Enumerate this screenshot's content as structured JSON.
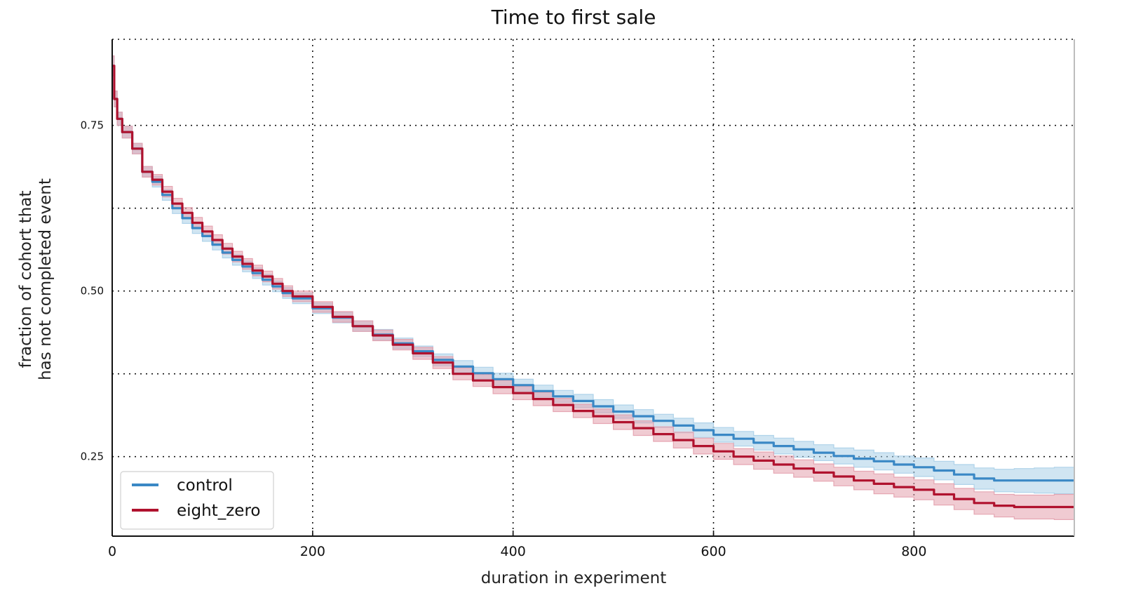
{
  "chart_data": {
    "type": "line",
    "title": "Time to first sale",
    "xlabel": "duration in experiment",
    "ylabel_lines": [
      "fraction of cohort that",
      "has not completed event"
    ],
    "xlim": [
      0,
      960
    ],
    "ylim": [
      0.13,
      0.88
    ],
    "x_ticks": [
      0,
      200,
      400,
      600,
      800
    ],
    "x_tick_labels": [
      "0",
      "200",
      "400",
      "600",
      "800"
    ],
    "y_gridlines": [
      0.25,
      0.375,
      0.5,
      0.625,
      0.75
    ],
    "y_tick_values": [
      0.25,
      0.5,
      0.75
    ],
    "y_tick_labels": [
      "0.25",
      "0.50",
      "0.75"
    ],
    "x_gridlines": [
      200,
      400,
      600,
      800
    ],
    "grid": true,
    "legend_position": "lower-left",
    "series": [
      {
        "name": "control",
        "color": "#3a88c5",
        "band_color": "#a9cfe8",
        "x": [
          0,
          2,
          5,
          10,
          20,
          30,
          40,
          50,
          60,
          70,
          80,
          90,
          100,
          110,
          120,
          130,
          140,
          150,
          160,
          170,
          180,
          200,
          220,
          240,
          260,
          280,
          300,
          320,
          340,
          360,
          380,
          400,
          420,
          440,
          460,
          480,
          500,
          520,
          540,
          560,
          580,
          600,
          620,
          640,
          660,
          680,
          700,
          720,
          740,
          760,
          780,
          800,
          820,
          840,
          860,
          880,
          900,
          920,
          940,
          960
        ],
        "y": [
          0.84,
          0.79,
          0.76,
          0.74,
          0.715,
          0.68,
          0.665,
          0.645,
          0.625,
          0.61,
          0.595,
          0.583,
          0.57,
          0.558,
          0.547,
          0.537,
          0.527,
          0.517,
          0.507,
          0.497,
          0.489,
          0.474,
          0.46,
          0.447,
          0.434,
          0.421,
          0.409,
          0.396,
          0.386,
          0.376,
          0.367,
          0.358,
          0.349,
          0.341,
          0.334,
          0.326,
          0.318,
          0.311,
          0.304,
          0.297,
          0.29,
          0.283,
          0.277,
          0.271,
          0.266,
          0.261,
          0.256,
          0.251,
          0.247,
          0.243,
          0.238,
          0.234,
          0.229,
          0.223,
          0.217,
          0.214,
          0.214,
          0.214,
          0.214,
          0.214
        ],
        "band_halfwidth": [
          0.015,
          0.012,
          0.01,
          0.009,
          0.008,
          0.008,
          0.008,
          0.008,
          0.008,
          0.008,
          0.008,
          0.008,
          0.008,
          0.008,
          0.008,
          0.008,
          0.008,
          0.008,
          0.008,
          0.008,
          0.008,
          0.008,
          0.008,
          0.008,
          0.008,
          0.008,
          0.008,
          0.009,
          0.009,
          0.009,
          0.009,
          0.009,
          0.009,
          0.009,
          0.01,
          0.01,
          0.01,
          0.01,
          0.01,
          0.011,
          0.011,
          0.011,
          0.011,
          0.011,
          0.012,
          0.012,
          0.012,
          0.012,
          0.013,
          0.013,
          0.013,
          0.014,
          0.014,
          0.015,
          0.016,
          0.017,
          0.018,
          0.019,
          0.02,
          0.02
        ]
      },
      {
        "name": "eight_zero",
        "color": "#b0122e",
        "band_color": "#e3a0ad",
        "x": [
          0,
          2,
          5,
          10,
          20,
          30,
          40,
          50,
          60,
          70,
          80,
          90,
          100,
          110,
          120,
          130,
          140,
          150,
          160,
          170,
          180,
          200,
          220,
          240,
          260,
          280,
          300,
          320,
          340,
          360,
          380,
          400,
          420,
          440,
          460,
          480,
          500,
          520,
          540,
          560,
          580,
          600,
          620,
          640,
          660,
          680,
          700,
          720,
          740,
          760,
          780,
          800,
          820,
          840,
          860,
          880,
          900,
          920,
          940,
          960
        ],
        "y": [
          0.84,
          0.79,
          0.76,
          0.74,
          0.715,
          0.68,
          0.668,
          0.65,
          0.632,
          0.618,
          0.603,
          0.59,
          0.577,
          0.564,
          0.552,
          0.541,
          0.531,
          0.522,
          0.511,
          0.5,
          0.492,
          0.476,
          0.461,
          0.447,
          0.433,
          0.419,
          0.406,
          0.392,
          0.375,
          0.365,
          0.355,
          0.346,
          0.337,
          0.328,
          0.319,
          0.311,
          0.302,
          0.293,
          0.284,
          0.275,
          0.266,
          0.258,
          0.25,
          0.244,
          0.238,
          0.232,
          0.226,
          0.22,
          0.214,
          0.209,
          0.204,
          0.2,
          0.193,
          0.186,
          0.18,
          0.176,
          0.174,
          0.174,
          0.174,
          0.174
        ],
        "band_halfwidth": [
          0.015,
          0.012,
          0.01,
          0.009,
          0.008,
          0.008,
          0.008,
          0.008,
          0.008,
          0.008,
          0.008,
          0.008,
          0.008,
          0.008,
          0.008,
          0.008,
          0.008,
          0.008,
          0.008,
          0.008,
          0.008,
          0.008,
          0.008,
          0.008,
          0.008,
          0.008,
          0.009,
          0.009,
          0.009,
          0.009,
          0.01,
          0.01,
          0.01,
          0.01,
          0.01,
          0.011,
          0.011,
          0.011,
          0.011,
          0.012,
          0.012,
          0.012,
          0.012,
          0.013,
          0.013,
          0.013,
          0.013,
          0.014,
          0.014,
          0.015,
          0.015,
          0.015,
          0.016,
          0.016,
          0.017,
          0.017,
          0.018,
          0.018,
          0.019,
          0.019
        ]
      }
    ]
  }
}
